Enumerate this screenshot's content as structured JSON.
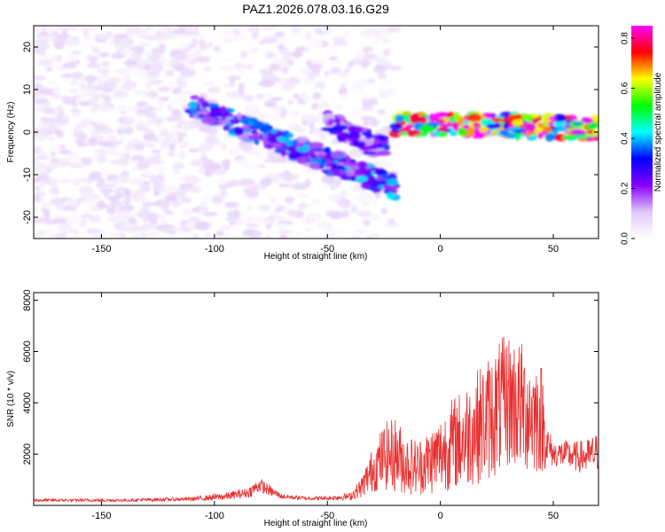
{
  "figure": {
    "title": "PAZ1.2026.078.03.16.G29"
  },
  "chart_data": [
    {
      "type": "heatmap",
      "xlabel": "Height of straight line (km)",
      "ylabel": "Frequency (Hz)",
      "xlim": [
        -180,
        70
      ],
      "ylim": [
        -25,
        25
      ],
      "xticks": [
        -150,
        -100,
        -50,
        0,
        50
      ],
      "xtick_labels": [
        "-150",
        "-100",
        "-50",
        "0",
        "50"
      ],
      "yticks": [
        -20,
        -10,
        0,
        10,
        20
      ],
      "ytick_labels": [
        "-20",
        "-10",
        "0",
        "10",
        "20"
      ],
      "colorbar": {
        "label": "Normalized spectral amplitude",
        "range": [
          0.0,
          0.85
        ],
        "ticks": [
          0.0,
          0.2,
          0.4,
          0.6,
          0.8
        ],
        "tick_labels": [
          "0.0",
          "0.2",
          "0.4",
          "0.6",
          "0.8"
        ],
        "colormap": [
          "#ffffff",
          "#e0c8f8",
          "#8800ff",
          "#0000ff",
          "#00ffff",
          "#00ff00",
          "#ffff00",
          "#ff0000",
          "#ff00ff"
        ]
      },
      "features": [
        {
          "name": "noise",
          "x_range": [
            -180,
            -20
          ],
          "freq_range": [
            -25,
            25
          ],
          "amplitude": 0.03
        },
        {
          "name": "descending track",
          "x_start": -110,
          "x_end": -20,
          "freq_start": 6,
          "freq_end": -13,
          "amplitude": 0.25
        },
        {
          "name": "secondary descending track",
          "x_start": -50,
          "x_end": -25,
          "freq_start": 2,
          "freq_end": -4,
          "amplitude": 0.2
        },
        {
          "name": "flat carrier track",
          "x_start": -20,
          "x_end": 70,
          "freq_start": 2,
          "freq_end": 1,
          "amplitude": 0.55
        }
      ]
    },
    {
      "type": "line",
      "xlabel": "Height of straight line (km)",
      "ylabel": "SNR (10 * v/v)",
      "xlim": [
        -180,
        70
      ],
      "ylim": [
        0,
        8300
      ],
      "xticks": [
        -150,
        -100,
        -50,
        0,
        50
      ],
      "xtick_labels": [
        "-150",
        "-100",
        "-50",
        "0",
        "50"
      ],
      "yticks": [
        2000,
        4000,
        6000,
        8000
      ],
      "ytick_labels": [
        "2000",
        "4000",
        "6000",
        "8000"
      ],
      "color": "#e83030",
      "envelope": {
        "x": [
          -180,
          -140,
          -110,
          -95,
          -85,
          -80,
          -75,
          -70,
          -60,
          -50,
          -40,
          -35,
          -30,
          -25,
          -20,
          -15,
          -10,
          -5,
          0,
          5,
          10,
          15,
          20,
          25,
          30,
          35,
          40,
          45,
          47,
          50,
          55,
          60,
          65,
          70
        ],
        "mean": [
          200,
          200,
          250,
          350,
          500,
          800,
          550,
          350,
          280,
          280,
          350,
          700,
          1400,
          1900,
          2000,
          1600,
          1500,
          1700,
          2000,
          2400,
          2600,
          3000,
          3300,
          3700,
          4100,
          3900,
          3600,
          3400,
          2400,
          2000,
          2000,
          1900,
          1900,
          2100
        ],
        "spread": [
          60,
          60,
          80,
          150,
          200,
          300,
          200,
          100,
          80,
          80,
          150,
          400,
          900,
          1300,
          1500,
          1200,
          1100,
          1300,
          1500,
          1800,
          2000,
          2200,
          2400,
          2600,
          2700,
          2600,
          2400,
          2200,
          900,
          500,
          550,
          600,
          700,
          800
        ]
      }
    }
  ]
}
